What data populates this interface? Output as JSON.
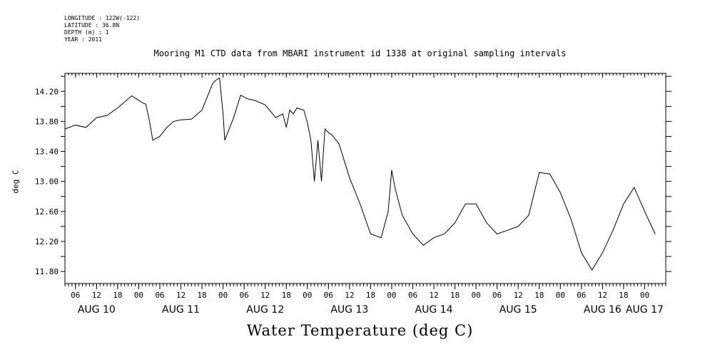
{
  "meta": {
    "longitude": "LONGITUDE : 122W(-122)",
    "latitude": "LATITUDE : 36.8N",
    "depth": "DEPTH (m) : 1",
    "year": "YEAR : 2011"
  },
  "chart_data": {
    "type": "line",
    "title": "Mooring M1 CTD data from MBARI instrument id 1338 at original sampling intervals",
    "xlabel": "Water Temperature (deg C)",
    "ylabel": "deg C",
    "xlim": [
      "2011-08-10 03:00",
      "2011-08-17 06:00"
    ],
    "ylim": [
      11.64,
      14.44
    ],
    "yticks": [
      11.8,
      12.2,
      12.6,
      13.0,
      13.4,
      13.8,
      14.2
    ],
    "ytick_labels": [
      "11.80",
      "12.20",
      "12.60",
      "13.00",
      "13.40",
      "13.80",
      "14.20"
    ],
    "xtick_labels": [
      {
        "t": "2011-08-10 06:00",
        "label": "06"
      },
      {
        "t": "2011-08-10 12:00",
        "label": "12"
      },
      {
        "t": "2011-08-10 18:00",
        "label": "18"
      },
      {
        "t": "2011-08-11 00:00",
        "label": "00"
      },
      {
        "t": "2011-08-11 06:00",
        "label": "06"
      },
      {
        "t": "2011-08-11 12:00",
        "label": "12"
      },
      {
        "t": "2011-08-11 18:00",
        "label": "18"
      },
      {
        "t": "2011-08-12 00:00",
        "label": "00"
      },
      {
        "t": "2011-08-12 06:00",
        "label": "06"
      },
      {
        "t": "2011-08-12 12:00",
        "label": "12"
      },
      {
        "t": "2011-08-12 18:00",
        "label": "18"
      },
      {
        "t": "2011-08-13 00:00",
        "label": "00"
      },
      {
        "t": "2011-08-13 06:00",
        "label": "06"
      },
      {
        "t": "2011-08-13 12:00",
        "label": "12"
      },
      {
        "t": "2011-08-13 18:00",
        "label": "18"
      },
      {
        "t": "2011-08-14 00:00",
        "label": "00"
      },
      {
        "t": "2011-08-14 06:00",
        "label": "06"
      },
      {
        "t": "2011-08-14 12:00",
        "label": "12"
      },
      {
        "t": "2011-08-14 18:00",
        "label": "18"
      },
      {
        "t": "2011-08-15 00:00",
        "label": "00"
      },
      {
        "t": "2011-08-15 06:00",
        "label": "06"
      },
      {
        "t": "2011-08-15 12:00",
        "label": "12"
      },
      {
        "t": "2011-08-15 18:00",
        "label": "18"
      },
      {
        "t": "2011-08-16 00:00",
        "label": "00"
      },
      {
        "t": "2011-08-16 06:00",
        "label": "06"
      },
      {
        "t": "2011-08-16 12:00",
        "label": "12"
      },
      {
        "t": "2011-08-16 18:00",
        "label": "18"
      },
      {
        "t": "2011-08-17 00:00",
        "label": "00"
      }
    ],
    "day_labels": [
      {
        "t": "2011-08-10 12:00",
        "label": "AUG 10"
      },
      {
        "t": "2011-08-11 12:00",
        "label": "AUG 11"
      },
      {
        "t": "2011-08-12 12:00",
        "label": "AUG 12"
      },
      {
        "t": "2011-08-13 12:00",
        "label": "AUG 13"
      },
      {
        "t": "2011-08-14 12:00",
        "label": "AUG 14"
      },
      {
        "t": "2011-08-15 12:00",
        "label": "AUG 15"
      },
      {
        "t": "2011-08-16 12:00",
        "label": "AUG 16"
      },
      {
        "t": "2011-08-17 00:00",
        "label": "AUG 17"
      }
    ],
    "grid": false,
    "series": [
      {
        "color": "#000000",
        "x": [
          "2011-08-10 03:00",
          "2011-08-10 06:00",
          "2011-08-10 09:00",
          "2011-08-10 12:00",
          "2011-08-10 15:00",
          "2011-08-10 18:00",
          "2011-08-10 21:00",
          "2011-08-10 22:00",
          "2011-08-11 01:00",
          "2011-08-11 02:00",
          "2011-08-11 03:00",
          "2011-08-11 04:00",
          "2011-08-11 06:00",
          "2011-08-11 08:00",
          "2011-08-11 10:00",
          "2011-08-11 12:00",
          "2011-08-11 15:00",
          "2011-08-11 18:00",
          "2011-08-11 21:00",
          "2011-08-11 22:00",
          "2011-08-11 23:00",
          "2011-08-12 00:00",
          "2011-08-12 00:30",
          "2011-08-12 03:00",
          "2011-08-12 05:00",
          "2011-08-12 07:00",
          "2011-08-12 09:00",
          "2011-08-12 12:00",
          "2011-08-12 15:00",
          "2011-08-12 17:00",
          "2011-08-12 18:00",
          "2011-08-12 19:00",
          "2011-08-12 20:00",
          "2011-08-12 21:00",
          "2011-08-12 23:00",
          "2011-08-13 00:00",
          "2011-08-13 01:00",
          "2011-08-13 02:00",
          "2011-08-13 03:00",
          "2011-08-13 04:00",
          "2011-08-13 05:00",
          "2011-08-13 06:00",
          "2011-08-13 07:00",
          "2011-08-13 09:00",
          "2011-08-13 12:00",
          "2011-08-13 15:00",
          "2011-08-13 18:00",
          "2011-08-13 21:00",
          "2011-08-13 23:00",
          "2011-08-14 00:00",
          "2011-08-14 01:00",
          "2011-08-14 03:00",
          "2011-08-14 06:00",
          "2011-08-14 09:00",
          "2011-08-14 12:00",
          "2011-08-14 15:00",
          "2011-08-14 18:00",
          "2011-08-14 21:00",
          "2011-08-15 00:00",
          "2011-08-15 03:00",
          "2011-08-15 06:00",
          "2011-08-15 09:00",
          "2011-08-15 12:00",
          "2011-08-15 15:00",
          "2011-08-15 18:00",
          "2011-08-15 21:00",
          "2011-08-16 00:00",
          "2011-08-16 03:00",
          "2011-08-16 06:00",
          "2011-08-16 09:00",
          "2011-08-16 12:00",
          "2011-08-16 15:00",
          "2011-08-16 18:00",
          "2011-08-16 21:00",
          "2011-08-17 00:00",
          "2011-08-17 03:00"
        ],
        "y": [
          13.7,
          13.75,
          13.72,
          13.85,
          13.88,
          13.98,
          14.1,
          14.14,
          14.05,
          14.03,
          13.82,
          13.55,
          13.6,
          13.72,
          13.8,
          13.82,
          13.83,
          13.95,
          14.3,
          14.35,
          14.38,
          13.9,
          13.55,
          13.85,
          14.15,
          14.1,
          14.08,
          14.02,
          13.85,
          13.9,
          13.72,
          13.95,
          13.9,
          13.98,
          13.95,
          13.78,
          13.55,
          13.0,
          13.55,
          13.0,
          13.7,
          13.65,
          13.62,
          13.5,
          13.05,
          12.7,
          12.3,
          12.25,
          12.6,
          13.15,
          12.9,
          12.55,
          12.3,
          12.15,
          12.25,
          12.3,
          12.45,
          12.7,
          12.7,
          12.45,
          12.3,
          12.35,
          12.4,
          12.55,
          13.12,
          13.1,
          12.85,
          12.5,
          12.05,
          11.82,
          12.05,
          12.35,
          12.7,
          12.92,
          12.6,
          12.3
        ]
      }
    ]
  }
}
